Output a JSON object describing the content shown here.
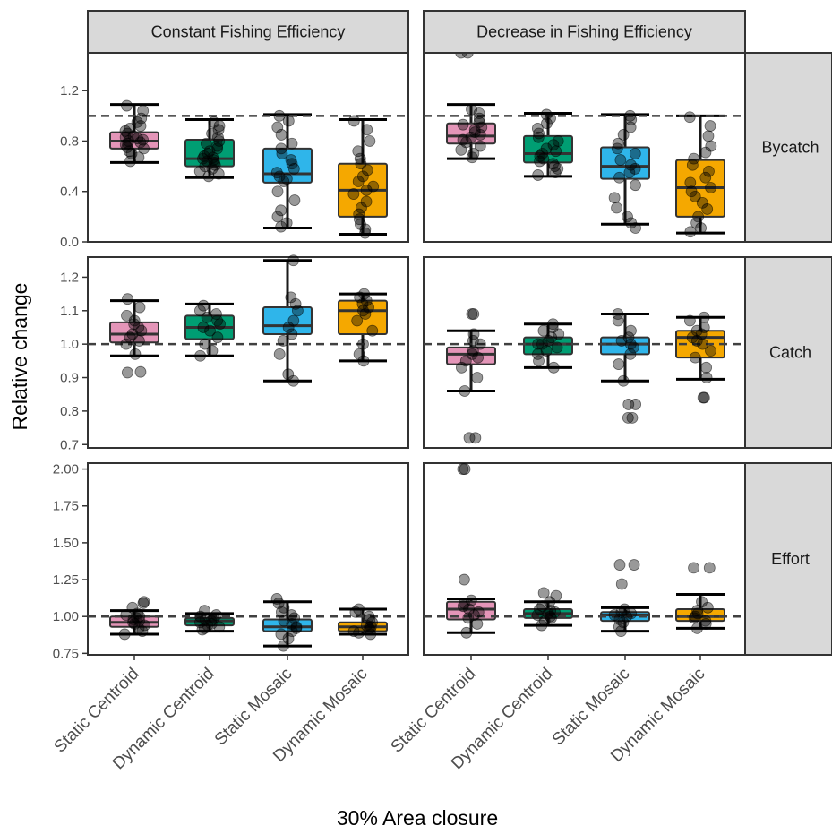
{
  "chart_data": {
    "type": "box",
    "xlabel": "30% Area closure",
    "ylabel": "Relative change",
    "categories": [
      "Static Centroid",
      "Dynamic Centroid",
      "Static Mosaic",
      "Dynamic Mosaic"
    ],
    "column_facets": [
      "Constant Fishing Efficiency",
      "Decrease in Fishing Efficiency"
    ],
    "row_facets": [
      "Bycatch",
      "Catch",
      "Effort"
    ],
    "reference_line": 1.0,
    "colors": {
      "Static Centroid": "#e495b8",
      "Dynamic Centroid": "#009e73",
      "Static Mosaic": "#2fb5ea",
      "Dynamic Mosaic": "#f5a800"
    },
    "y_axes": {
      "Bycatch": {
        "ylim": [
          0.0,
          1.5
        ],
        "ticks": [
          "0.0",
          "0.4",
          "0.8",
          "1.2"
        ]
      },
      "Catch": {
        "ylim": [
          0.69,
          1.26
        ],
        "ticks": [
          "0.7",
          "0.8",
          "0.9",
          "1.0",
          "1.1",
          "1.2"
        ]
      },
      "Effort": {
        "ylim": [
          0.74,
          2.04
        ],
        "ticks": [
          "0.75",
          "1.00",
          "1.25",
          "1.50",
          "1.75",
          "2.00"
        ]
      }
    },
    "panels": [
      {
        "row": "Bycatch",
        "col": "Constant Fishing Efficiency",
        "boxes": [
          {
            "min": 0.63,
            "q1": 0.74,
            "median": 0.8,
            "q3": 0.87,
            "max": 1.09,
            "points": [
              0.64,
              0.67,
              0.7,
              0.72,
              0.74,
              0.75,
              0.77,
              0.78,
              0.79,
              0.8,
              0.81,
              0.82,
              0.83,
              0.84,
              0.86,
              0.88,
              0.9,
              0.92,
              0.95,
              0.98,
              1.04,
              1.08
            ]
          },
          {
            "min": 0.51,
            "q1": 0.6,
            "median": 0.66,
            "q3": 0.81,
            "max": 0.97,
            "points": [
              0.52,
              0.54,
              0.56,
              0.58,
              0.6,
              0.61,
              0.63,
              0.64,
              0.65,
              0.66,
              0.67,
              0.68,
              0.7,
              0.72,
              0.74,
              0.76,
              0.78,
              0.8,
              0.83,
              0.86,
              0.89,
              0.92,
              0.95
            ]
          },
          {
            "min": 0.11,
            "q1": 0.47,
            "median": 0.54,
            "q3": 0.74,
            "max": 1.01,
            "points": [
              0.12,
              0.15,
              0.2,
              0.25,
              0.33,
              0.4,
              0.48,
              0.5,
              0.52,
              0.55,
              0.58,
              0.62,
              0.65,
              0.7,
              0.74,
              0.78,
              0.85,
              0.91,
              0.96,
              1.0
            ]
          },
          {
            "min": 0.06,
            "q1": 0.2,
            "median": 0.41,
            "q3": 0.62,
            "max": 0.97,
            "points": [
              0.07,
              0.1,
              0.14,
              0.18,
              0.22,
              0.27,
              0.32,
              0.38,
              0.41,
              0.44,
              0.48,
              0.52,
              0.57,
              0.62,
              0.66,
              0.72,
              0.8,
              0.89,
              0.96
            ]
          }
        ]
      },
      {
        "row": "Bycatch",
        "col": "Decrease in Fishing Efficiency",
        "boxes": [
          {
            "min": 0.66,
            "q1": 0.78,
            "median": 0.84,
            "q3": 0.94,
            "max": 1.09,
            "points": [
              0.67,
              0.7,
              0.73,
              0.76,
              0.79,
              0.81,
              0.83,
              0.85,
              0.87,
              0.89,
              0.91,
              0.93,
              0.95,
              0.98,
              1.02,
              1.05,
              1.5,
              1.5
            ]
          },
          {
            "min": 0.52,
            "q1": 0.63,
            "median": 0.7,
            "q3": 0.84,
            "max": 1.02,
            "points": [
              0.53,
              0.55,
              0.58,
              0.6,
              0.62,
              0.64,
              0.66,
              0.68,
              0.7,
              0.72,
              0.74,
              0.77,
              0.8,
              0.83,
              0.86,
              0.9,
              0.94,
              0.98,
              1.01
            ]
          },
          {
            "min": 0.14,
            "q1": 0.5,
            "median": 0.6,
            "q3": 0.75,
            "max": 1.01,
            "points": [
              0.11,
              0.15,
              0.2,
              0.27,
              0.35,
              0.45,
              0.51,
              0.55,
              0.58,
              0.61,
              0.65,
              0.7,
              0.74,
              0.78,
              0.85,
              0.91,
              0.97,
              1.0
            ]
          },
          {
            "min": 0.07,
            "q1": 0.2,
            "median": 0.43,
            "q3": 0.65,
            "max": 1.0,
            "points": [
              0.08,
              0.11,
              0.15,
              0.2,
              0.26,
              0.31,
              0.36,
              0.4,
              0.43,
              0.47,
              0.51,
              0.56,
              0.61,
              0.66,
              0.71,
              0.76,
              0.84,
              0.92,
              0.99
            ]
          }
        ]
      },
      {
        "row": "Catch",
        "col": "Constant Fishing Efficiency",
        "boxes": [
          {
            "min": 0.965,
            "q1": 1.005,
            "median": 1.03,
            "q3": 1.065,
            "max": 1.13,
            "points": [
              0.915,
              0.917,
              0.97,
              1.0,
              1.01,
              1.02,
              1.03,
              1.04,
              1.05,
              1.06,
              1.07,
              1.085,
              1.11,
              1.135
            ]
          },
          {
            "min": 0.965,
            "q1": 1.015,
            "median": 1.05,
            "q3": 1.085,
            "max": 1.12,
            "points": [
              0.965,
              0.98,
              1.0,
              1.02,
              1.04,
              1.05,
              1.06,
              1.07,
              1.08,
              1.09,
              1.1,
              1.115
            ]
          },
          {
            "min": 0.89,
            "q1": 1.03,
            "median": 1.055,
            "q3": 1.11,
            "max": 1.25,
            "points": [
              0.89,
              0.91,
              0.97,
              1.01,
              1.03,
              1.05,
              1.07,
              1.1,
              1.12,
              1.14,
              1.25
            ]
          },
          {
            "min": 0.95,
            "q1": 1.03,
            "median": 1.1,
            "q3": 1.13,
            "max": 1.15,
            "points": [
              0.95,
              0.97,
              1.0,
              1.04,
              1.07,
              1.09,
              1.1,
              1.11,
              1.12,
              1.13,
              1.14,
              1.15
            ]
          }
        ]
      },
      {
        "row": "Catch",
        "col": "Decrease in Fishing Efficiency",
        "boxes": [
          {
            "min": 0.86,
            "q1": 0.94,
            "median": 0.97,
            "q3": 0.99,
            "max": 1.04,
            "points": [
              0.72,
              0.72,
              0.86,
              0.9,
              0.93,
              0.95,
              0.96,
              0.97,
              0.98,
              1.0,
              1.01,
              1.03,
              1.09,
              1.09
            ]
          },
          {
            "min": 0.93,
            "q1": 0.97,
            "median": 1.0,
            "q3": 1.02,
            "max": 1.06,
            "points": [
              0.93,
              0.95,
              0.97,
              0.98,
              0.99,
              1.0,
              1.0,
              1.01,
              1.02,
              1.03,
              1.04,
              1.05,
              1.06
            ]
          },
          {
            "min": 0.89,
            "q1": 0.97,
            "median": 1.0,
            "q3": 1.02,
            "max": 1.09,
            "points": [
              0.78,
              0.78,
              0.82,
              0.82,
              0.89,
              0.94,
              0.97,
              0.99,
              1.0,
              1.01,
              1.02,
              1.04,
              1.07,
              1.09
            ]
          },
          {
            "min": 0.895,
            "q1": 0.96,
            "median": 1.02,
            "q3": 1.04,
            "max": 1.08,
            "points": [
              0.84,
              0.84,
              0.9,
              0.93,
              0.96,
              0.98,
              1.0,
              1.01,
              1.02,
              1.03,
              1.04,
              1.05,
              1.07,
              1.08
            ]
          }
        ]
      },
      {
        "row": "Effort",
        "col": "Constant Fishing Efficiency",
        "boxes": [
          {
            "min": 0.88,
            "q1": 0.93,
            "median": 0.96,
            "q3": 1.0,
            "max": 1.04,
            "points": [
              0.88,
              0.9,
              0.92,
              0.94,
              0.95,
              0.96,
              0.97,
              0.98,
              0.99,
              1.0,
              1.01,
              1.02,
              1.06,
              1.09,
              1.1
            ]
          },
          {
            "min": 0.9,
            "q1": 0.94,
            "median": 0.97,
            "q3": 0.99,
            "max": 1.02,
            "points": [
              0.91,
              0.92,
              0.93,
              0.94,
              0.95,
              0.96,
              0.97,
              0.98,
              0.99,
              1.0,
              1.01,
              1.04
            ]
          },
          {
            "min": 0.8,
            "q1": 0.9,
            "median": 0.93,
            "q3": 0.98,
            "max": 1.1,
            "points": [
              0.8,
              0.85,
              0.88,
              0.9,
              0.92,
              0.93,
              0.95,
              0.97,
              0.99,
              1.01,
              1.03,
              1.06,
              1.09,
              1.12
            ]
          },
          {
            "min": 0.88,
            "q1": 0.9,
            "median": 0.93,
            "q3": 0.96,
            "max": 1.05,
            "points": [
              0.88,
              0.89,
              0.9,
              0.91,
              0.92,
              0.93,
              0.94,
              0.96,
              0.98,
              1.0,
              1.03,
              1.05
            ]
          }
        ]
      },
      {
        "row": "Effort",
        "col": "Decrease in Fishing Efficiency",
        "boxes": [
          {
            "min": 0.89,
            "q1": 0.98,
            "median": 1.05,
            "q3": 1.1,
            "max": 1.12,
            "points": [
              0.89,
              0.95,
              0.99,
              1.01,
              1.03,
              1.05,
              1.07,
              1.09,
              1.11,
              1.25,
              2.0,
              2.0
            ]
          },
          {
            "min": 0.94,
            "q1": 0.99,
            "median": 1.02,
            "q3": 1.05,
            "max": 1.1,
            "points": [
              0.94,
              0.97,
              0.99,
              1.0,
              1.01,
              1.02,
              1.03,
              1.04,
              1.05,
              1.07,
              1.1,
              1.14,
              1.16
            ]
          },
          {
            "min": 0.9,
            "q1": 0.97,
            "median": 1.01,
            "q3": 1.03,
            "max": 1.06,
            "points": [
              0.9,
              0.93,
              0.96,
              0.98,
              1.0,
              1.01,
              1.02,
              1.03,
              1.05,
              1.22,
              1.35,
              1.35
            ]
          },
          {
            "min": 0.92,
            "q1": 0.97,
            "median": 1.0,
            "q3": 1.05,
            "max": 1.15,
            "points": [
              0.92,
              0.95,
              0.97,
              0.99,
              1.0,
              1.02,
              1.04,
              1.06,
              1.1,
              1.33,
              1.33
            ]
          }
        ]
      }
    ]
  }
}
